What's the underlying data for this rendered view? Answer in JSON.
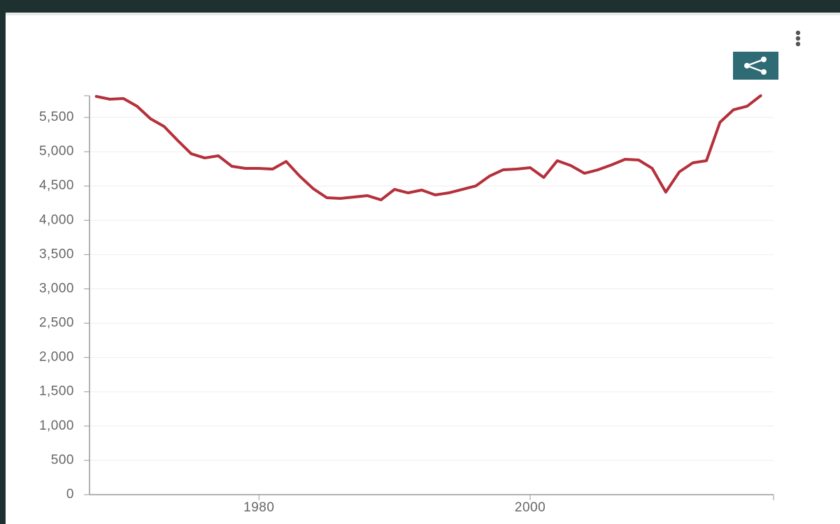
{
  "chart_data": {
    "type": "line",
    "x": [
      1968,
      1969,
      1970,
      1971,
      1972,
      1973,
      1974,
      1975,
      1976,
      1977,
      1978,
      1979,
      1980,
      1981,
      1982,
      1983,
      1984,
      1985,
      1986,
      1987,
      1988,
      1989,
      1990,
      1991,
      1992,
      1993,
      1994,
      1995,
      1996,
      1997,
      1998,
      1999,
      2000,
      2001,
      2002,
      2003,
      2004,
      2005,
      2006,
      2007,
      2008,
      2009,
      2010,
      2011,
      2012,
      2013,
      2014,
      2015,
      2016,
      2017
    ],
    "series": [
      {
        "color": "#b5303a",
        "values": [
          5806,
          5765,
          5775,
          5663,
          5480,
          5368,
          5164,
          4970,
          4909,
          4940,
          4787,
          4757,
          4757,
          4746,
          4858,
          4644,
          4461,
          4329,
          4319,
          4339,
          4359,
          4298,
          4451,
          4400,
          4441,
          4370,
          4400,
          4451,
          4502,
          4644,
          4736,
          4746,
          4767,
          4624,
          4869,
          4797,
          4685,
          4736,
          4808,
          4889,
          4879,
          4757,
          4410,
          4706,
          4838,
          4869,
          5429,
          5612,
          5663,
          5816
        ]
      }
    ],
    "xlim": [
      1967.5,
      2017.95
    ],
    "xticks": [
      1980,
      2000
    ],
    "ylim": [
      0,
      5816
    ],
    "yticks": [
      0,
      500,
      {
        "value": 1000,
        "label": "1,000"
      },
      {
        "value": 1500,
        "label": "1,500"
      },
      {
        "value": 2000,
        "label": "2,000"
      },
      {
        "value": 2500,
        "label": "2,500"
      },
      {
        "value": 3000,
        "label": "3,000"
      },
      {
        "value": 3500,
        "label": "3,500"
      },
      {
        "value": 4000,
        "label": "4,000"
      },
      {
        "value": 4500,
        "label": "4,500"
      },
      {
        "value": 5000,
        "label": "5,000"
      },
      {
        "value": 5500,
        "label": "5,500"
      }
    ],
    "grid": true
  }
}
